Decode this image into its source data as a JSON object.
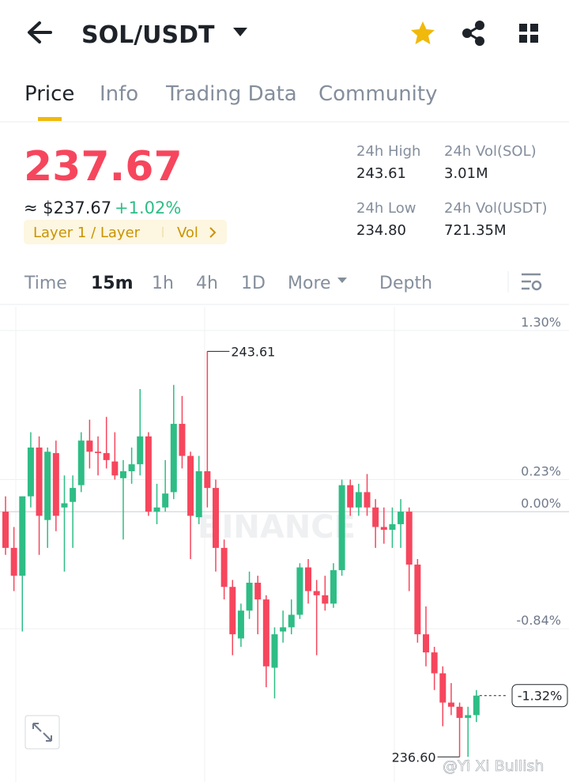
{
  "header": {
    "pair": "SOL/USDT"
  },
  "tabs": [
    "Price",
    "Info",
    "Trading Data",
    "Community"
  ],
  "price": {
    "last": "237.67",
    "usd": "≈ $237.67",
    "change": "+1.02%",
    "tag": "Layer 1 / Layer",
    "vol": "Vol"
  },
  "stats": [
    {
      "label": "24h High",
      "value": "243.61"
    },
    {
      "label": "24h Vol(SOL)",
      "value": "3.01M"
    },
    {
      "label": "24h Low",
      "value": "234.80"
    },
    {
      "label": "24h Vol(USDT)",
      "value": "721.35M"
    }
  ],
  "intervals": [
    "Time",
    "15m",
    "1h",
    "4h",
    "1D",
    "More",
    "Depth"
  ],
  "chart_data": {
    "type": "candlestick",
    "up_color": "#2ebd85",
    "down_color": "#f6465d",
    "open": [
      0,
      -0.26,
      -0.46,
      0.11,
      0.46,
      -0.06,
      0.42,
      0.03,
      0.07,
      0.19,
      0.51,
      0.43,
      0.42,
      0.36,
      0.24,
      0.29,
      0.34,
      0.54,
      0,
      0.03,
      0.14,
      0.63,
      0.4,
      -0.04,
      0.29,
      0.17,
      -0.26,
      -0.54,
      -0.91,
      -0.71,
      -0.51,
      -0.63,
      -1.12,
      -0.86,
      -0.83,
      -0.74,
      -0.4,
      -0.57,
      -0.6,
      -0.66,
      -0.42,
      0.19,
      0.03,
      0.14,
      0.03,
      -0.11,
      -0.13,
      -0.09,
      0,
      -0.38,
      -0.88,
      -1.01,
      -1.16,
      -1.37,
      -1.4,
      -1.48,
      -1.46
    ],
    "high": [
      0.11,
      -0.11,
      0.09,
      0.57,
      0.54,
      0.46,
      0.51,
      0.26,
      0.26,
      0.57,
      0.66,
      0.54,
      0.68,
      0.57,
      0.37,
      0.46,
      0.88,
      0.57,
      0.2,
      0.37,
      0.91,
      0.83,
      0.43,
      0.4,
      1.15,
      0.23,
      -0.2,
      -0.49,
      -0.66,
      -0.43,
      -0.46,
      -0.6,
      -0.83,
      -0.71,
      -0.63,
      -0.37,
      -0.34,
      -0.49,
      -0.46,
      -0.37,
      0.23,
      0.23,
      0.2,
      0.27,
      0.09,
      0.03,
      0.03,
      0.09,
      0.03,
      -0.34,
      -0.68,
      -0.97,
      -1.11,
      -1.23,
      -1.37,
      -1.4,
      -1.28
    ],
    "low": [
      -0.31,
      -0.57,
      -0.86,
      0.03,
      -0.31,
      -0.26,
      -0.14,
      -0.43,
      -0.26,
      0.14,
      0.31,
      0.26,
      0.31,
      0.23,
      -0.2,
      0.2,
      0.26,
      -0.03,
      -0.09,
      0,
      0.09,
      0.31,
      -0.34,
      -0.09,
      0.03,
      -0.43,
      -0.63,
      -1.03,
      -0.97,
      -0.77,
      -0.88,
      -1.26,
      -1.34,
      -0.94,
      -0.88,
      -0.77,
      -0.66,
      -1.03,
      -0.71,
      -0.69,
      -0.46,
      -0.03,
      -0.03,
      -0.03,
      -0.26,
      -0.23,
      -0.26,
      -0.26,
      -0.57,
      -0.94,
      -1.11,
      -1.28,
      -1.54,
      -1.46,
      -1.76,
      -1.76,
      -1.51
    ],
    "close": [
      -0.26,
      -0.46,
      0.11,
      0.46,
      -0.03,
      0.43,
      -0.03,
      0.06,
      0.17,
      0.51,
      0.43,
      0.42,
      0.37,
      0.26,
      0.29,
      0.34,
      0.54,
      0,
      0.03,
      0.13,
      0.63,
      0.4,
      -0.03,
      0.29,
      0.17,
      -0.26,
      -0.54,
      -0.88,
      -0.71,
      -0.51,
      -0.63,
      -1.11,
      -0.88,
      -0.83,
      -0.74,
      -0.4,
      -0.57,
      -0.6,
      -0.66,
      -0.42,
      0.19,
      0.03,
      0.14,
      0.03,
      -0.11,
      -0.13,
      -0.09,
      0,
      -0.38,
      -0.88,
      -1.01,
      -1.16,
      -1.37,
      -1.4,
      -1.48,
      -1.46,
      -1.32
    ],
    "ylim": [
      -1.94,
      1.47
    ],
    "yticks": [
      {
        "value": 1.3,
        "label": "1.30%"
      },
      {
        "value": 0.23,
        "label": "0.23%"
      },
      {
        "value": 0,
        "label": "0.00%"
      },
      {
        "value": -0.84,
        "label": "-0.84%"
      }
    ],
    "high_label": "243.61",
    "low_label": "236.60",
    "current_label": "-1.32%",
    "watermark": "BINANCE"
  },
  "credit": "@Yi Xi Bullish"
}
